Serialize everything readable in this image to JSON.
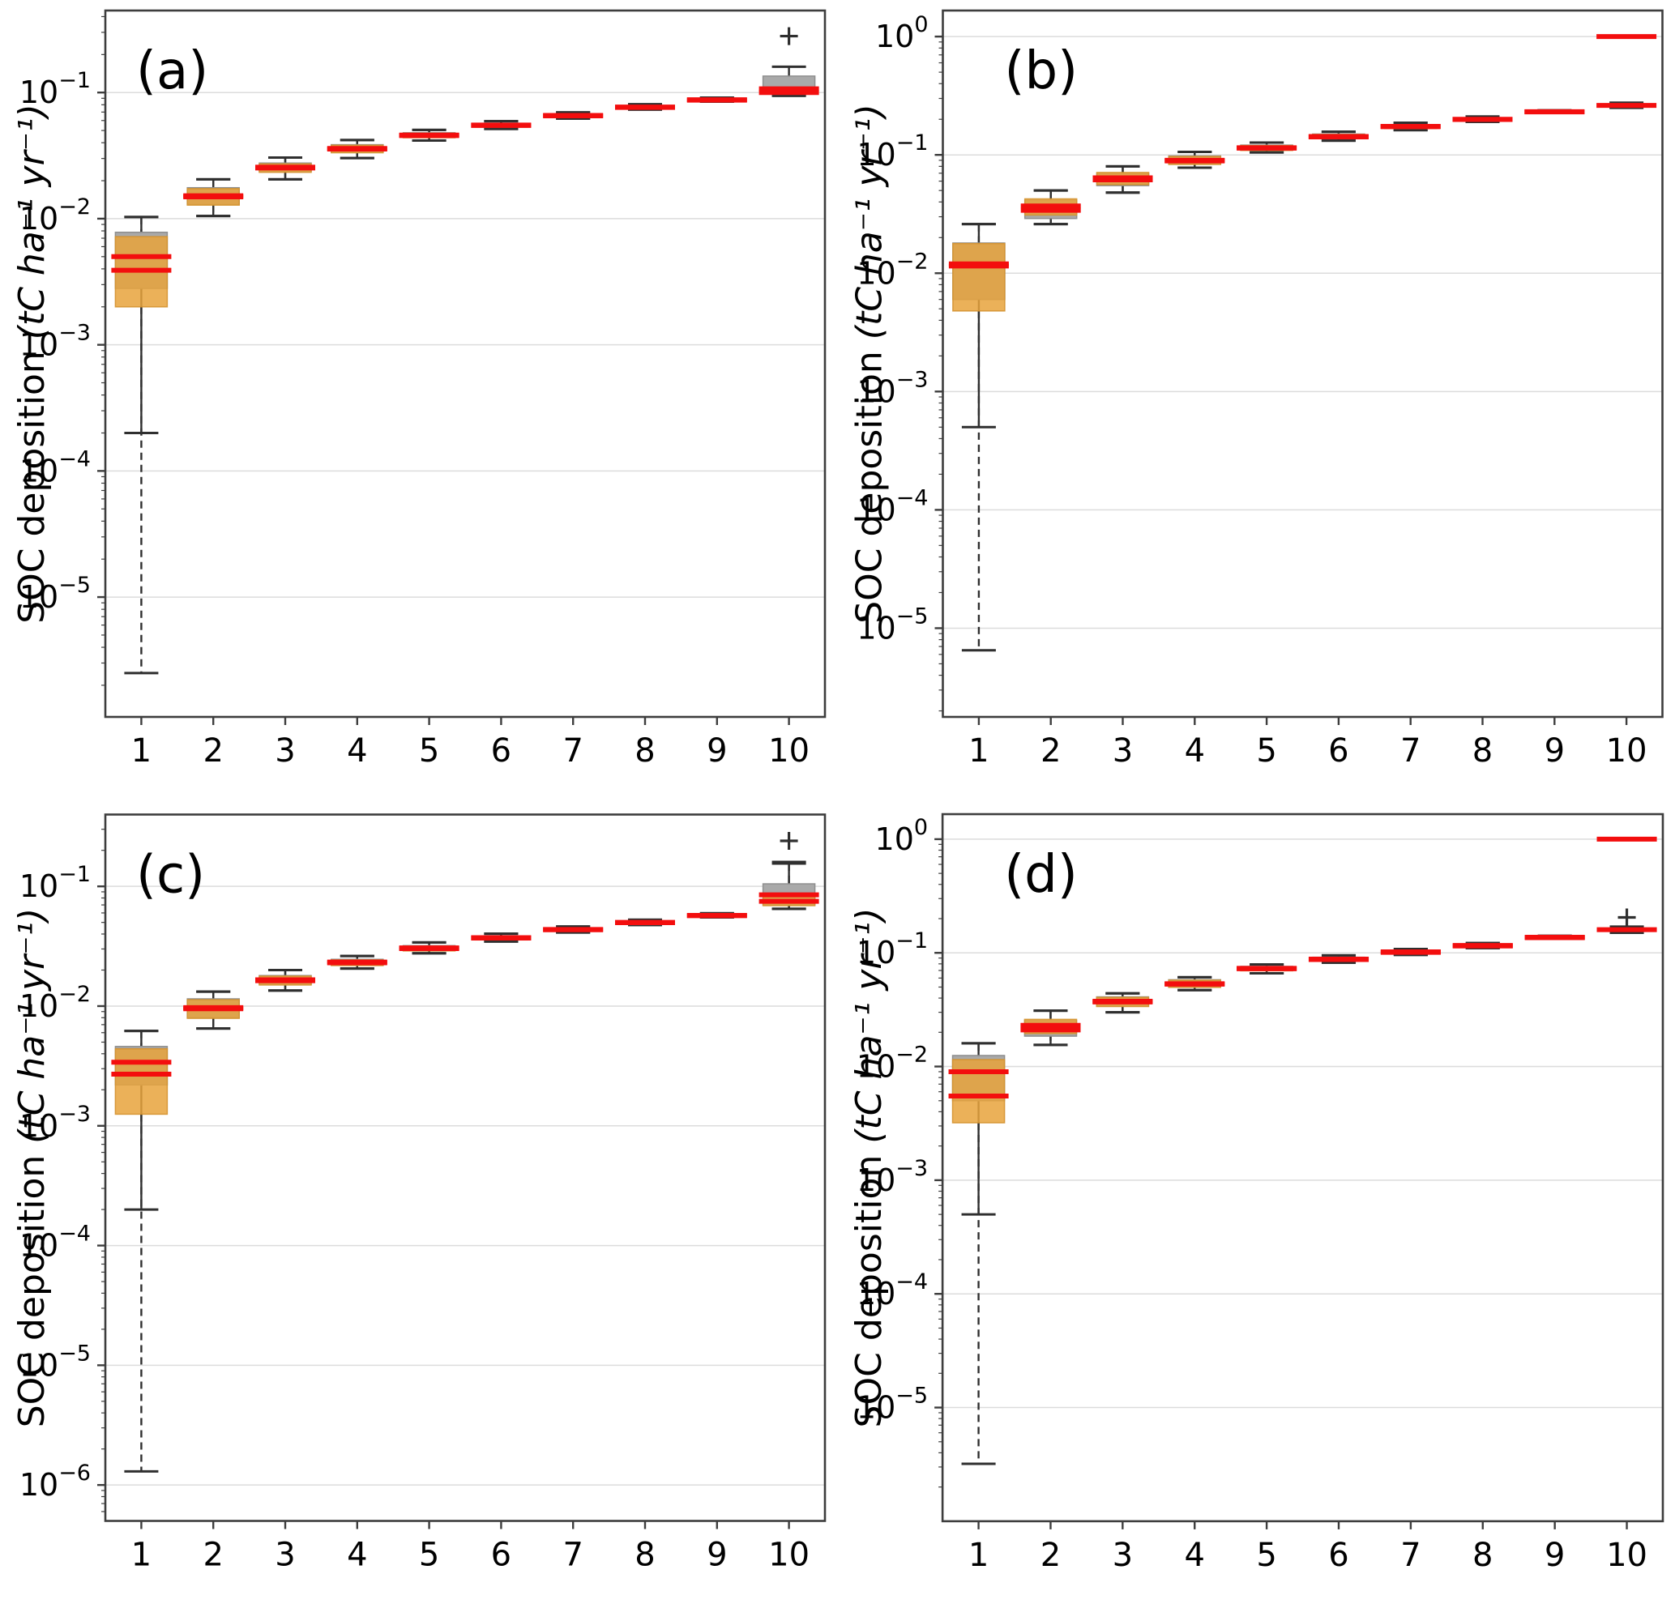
{
  "figure": {
    "ylabel_main": "SOC deposition ",
    "ylabel_unit": "(tC ha⁻¹ yr⁻¹)",
    "colors": {
      "background": "#ffffff",
      "spine": "#3d3d3d",
      "grid": "#dcdcdc",
      "whisker": "#2f2f2f",
      "gray_box_fill": "#a9a9a9",
      "gray_box_edge": "#8e8e8e",
      "orange_box_fill": "#e8a33c",
      "orange_box_edge": "#d4922f",
      "median_red": "#f30e0e",
      "text": "#000000"
    },
    "box_stats_order": "whisker_low, q1, median, q3, whisker_high"
  },
  "chart_data": [
    {
      "type": "boxplot",
      "panel_label": "(a)",
      "panel_label_x_offset": 38,
      "x_categories": [
        "1",
        "2",
        "3",
        "4",
        "5",
        "6",
        "7",
        "8",
        "9",
        "10"
      ],
      "y_tick_exponents": [
        -1,
        -2,
        -3,
        -4,
        -5
      ],
      "y_log_range": [
        -5.95,
        -0.35
      ],
      "grid": true,
      "series_names": [
        "gray",
        "orange"
      ],
      "categories": [
        {
          "x": "1",
          "gray": [
            0.0002,
            0.0028,
            0.005,
            0.0078,
            0.0103
          ],
          "orange": [
            2.5e-06,
            0.002,
            0.0039,
            0.0072,
            0.0103
          ],
          "outliers": []
        },
        {
          "x": "2",
          "gray": [
            0.0105,
            0.013,
            0.0152,
            0.0176,
            0.0205
          ],
          "orange": [
            0.0105,
            0.0128,
            0.0149,
            0.0173,
            0.0205
          ],
          "outliers": []
        },
        {
          "x": "3",
          "gray": [
            0.0205,
            0.0236,
            0.0256,
            0.0276,
            0.0305
          ],
          "orange": [
            0.0205,
            0.0233,
            0.0252,
            0.0272,
            0.0305
          ],
          "outliers": []
        },
        {
          "x": "4",
          "gray": [
            0.0302,
            0.0336,
            0.036,
            0.0386,
            0.042
          ],
          "orange": [
            0.0302,
            0.0333,
            0.0356,
            0.0382,
            0.042
          ],
          "outliers": []
        },
        {
          "x": "5",
          "gray": [
            0.0416,
            0.0442,
            0.046,
            0.048,
            0.0505
          ],
          "orange": [
            0.0416,
            0.0438,
            0.0456,
            0.0476,
            0.0505
          ],
          "outliers": []
        },
        {
          "x": "6",
          "gray": [
            0.0515,
            0.0536,
            0.0552,
            0.057,
            0.0592
          ],
          "orange": [
            0.0515,
            0.0532,
            0.0548,
            0.0566,
            0.0592
          ],
          "outliers": []
        },
        {
          "x": "7",
          "gray": [
            0.0622,
            0.0642,
            0.0658,
            0.0676,
            0.0696
          ],
          "orange": [
            0.0622,
            0.0638,
            0.0653,
            0.0671,
            0.0696
          ],
          "outliers": []
        },
        {
          "x": "8",
          "gray": [
            0.0732,
            0.0752,
            0.0768,
            0.0786,
            0.0806
          ],
          "orange": [
            0.0732,
            0.0747,
            0.0762,
            0.078,
            0.0806
          ],
          "outliers": []
        },
        {
          "x": "9",
          "gray": [
            0.0846,
            0.0862,
            0.0876,
            0.0894,
            0.0912
          ],
          "orange": [
            0.0846,
            0.0857,
            0.087,
            0.0888,
            0.0912
          ],
          "outliers": []
        },
        {
          "x": "10",
          "gray": [
            0.096,
            0.1,
            0.107,
            0.135,
            0.16
          ],
          "orange": [
            0.094,
            0.097,
            0.1,
            0.11,
            0.12
          ],
          "outliers": [
            0.28
          ]
        }
      ]
    },
    {
      "type": "boxplot",
      "panel_label": "(b)",
      "panel_label_x_offset": 76,
      "x_categories": [
        "1",
        "2",
        "3",
        "4",
        "5",
        "6",
        "7",
        "8",
        "9",
        "10"
      ],
      "y_tick_exponents": [
        0,
        -1,
        -2,
        -3,
        -4,
        -5
      ],
      "y_log_range": [
        -5.75,
        0.22
      ],
      "grid": true,
      "series_names": [
        "gray",
        "orange"
      ],
      "categories": [
        {
          "x": "1",
          "gray": [
            0.0005,
            0.006,
            0.012,
            0.018,
            0.026
          ],
          "orange": [
            6.5e-06,
            0.0048,
            0.0115,
            0.0178,
            0.026
          ],
          "outliers": []
        },
        {
          "x": "2",
          "gray": [
            0.026,
            0.029,
            0.034,
            0.0415,
            0.05
          ],
          "orange": [
            0.026,
            0.031,
            0.037,
            0.0425,
            0.05
          ],
          "outliers": []
        },
        {
          "x": "3",
          "gray": [
            0.048,
            0.055,
            0.0615,
            0.07,
            0.08
          ],
          "orange": [
            0.048,
            0.056,
            0.064,
            0.071,
            0.08
          ],
          "outliers": []
        },
        {
          "x": "4",
          "gray": [
            0.078,
            0.084,
            0.09,
            0.098,
            0.106
          ],
          "orange": [
            0.078,
            0.083,
            0.089,
            0.097,
            0.106
          ],
          "outliers": []
        },
        {
          "x": "5",
          "gray": [
            0.105,
            0.11,
            0.115,
            0.121,
            0.127
          ],
          "orange": [
            0.105,
            0.109,
            0.114,
            0.12,
            0.127
          ],
          "outliers": []
        },
        {
          "x": "6",
          "gray": [
            0.132,
            0.138,
            0.143,
            0.15,
            0.157
          ],
          "orange": [
            0.132,
            0.137,
            0.142,
            0.149,
            0.157
          ],
          "outliers": []
        },
        {
          "x": "7",
          "gray": [
            0.162,
            0.168,
            0.174,
            0.18,
            0.187
          ],
          "orange": [
            0.162,
            0.167,
            0.173,
            0.179,
            0.187
          ],
          "outliers": []
        },
        {
          "x": "8",
          "gray": [
            0.19,
            0.195,
            0.2,
            0.206,
            0.211
          ],
          "orange": [
            0.19,
            0.194,
            0.199,
            0.205,
            0.211
          ],
          "outliers": []
        },
        {
          "x": "9",
          "gray": [
            0.226,
            0.229,
            0.232,
            0.235,
            0.238
          ],
          "orange": [
            0.226,
            0.228,
            0.231,
            0.234,
            0.238
          ],
          "outliers": []
        },
        {
          "x": "10",
          "gray": [
            1.0,
            1.0,
            1.0,
            1.0,
            1.0
          ],
          "orange": [
            0.25,
            0.256,
            0.262,
            0.27,
            0.276
          ],
          "outliers": []
        }
      ]
    },
    {
      "type": "boxplot",
      "panel_label": "(c)",
      "panel_label_x_offset": 38,
      "x_categories": [
        "1",
        "2",
        "3",
        "4",
        "5",
        "6",
        "7",
        "8",
        "9",
        "10"
      ],
      "y_tick_exponents": [
        -1,
        -2,
        -3,
        -4,
        -5,
        -6
      ],
      "y_log_range": [
        -6.3,
        -0.4
      ],
      "grid": true,
      "series_names": [
        "gray",
        "orange"
      ],
      "categories": [
        {
          "x": "1",
          "gray": [
            0.0002,
            0.0022,
            0.0034,
            0.0046,
            0.0062
          ],
          "orange": [
            1.3e-06,
            0.00125,
            0.0027,
            0.0044,
            0.0062
          ],
          "outliers": []
        },
        {
          "x": "2",
          "gray": [
            0.0065,
            0.008,
            0.0097,
            0.0115,
            0.0132
          ],
          "orange": [
            0.0065,
            0.0079,
            0.0095,
            0.0113,
            0.0132
          ],
          "outliers": []
        },
        {
          "x": "3",
          "gray": [
            0.0135,
            0.0152,
            0.0166,
            0.018,
            0.02
          ],
          "orange": [
            0.0135,
            0.015,
            0.0163,
            0.0178,
            0.02
          ],
          "outliers": []
        },
        {
          "x": "4",
          "gray": [
            0.0206,
            0.022,
            0.0233,
            0.0246,
            0.0262
          ],
          "orange": [
            0.0206,
            0.0218,
            0.023,
            0.0243,
            0.0262
          ],
          "outliers": []
        },
        {
          "x": "5",
          "gray": [
            0.0276,
            0.0292,
            0.0306,
            0.032,
            0.034
          ],
          "orange": [
            0.0276,
            0.0289,
            0.0302,
            0.0317,
            0.034
          ],
          "outliers": []
        },
        {
          "x": "6",
          "gray": [
            0.0346,
            0.036,
            0.0373,
            0.0386,
            0.0402
          ],
          "orange": [
            0.0346,
            0.0357,
            0.037,
            0.0383,
            0.0402
          ],
          "outliers": []
        },
        {
          "x": "7",
          "gray": [
            0.0412,
            0.0426,
            0.0437,
            0.045,
            0.0462
          ],
          "orange": [
            0.0412,
            0.0423,
            0.0434,
            0.0447,
            0.0462
          ],
          "outliers": []
        },
        {
          "x": "8",
          "gray": [
            0.0476,
            0.049,
            0.05,
            0.0512,
            0.0526
          ],
          "orange": [
            0.0476,
            0.0487,
            0.0497,
            0.0509,
            0.0526
          ],
          "outliers": []
        },
        {
          "x": "9",
          "gray": [
            0.055,
            0.0562,
            0.0572,
            0.0584,
            0.0596
          ],
          "orange": [
            0.055,
            0.0559,
            0.0569,
            0.0581,
            0.0596
          ],
          "outliers": []
        },
        {
          "x": "10",
          "gray": [
            0.065,
            0.07,
            0.085,
            0.105,
            0.16
          ],
          "orange": [
            0.065,
            0.069,
            0.075,
            0.082,
            0.155
          ],
          "outliers": [
            0.24
          ]
        }
      ]
    },
    {
      "type": "boxplot",
      "panel_label": "(d)",
      "panel_label_x_offset": 76,
      "x_categories": [
        "1",
        "2",
        "3",
        "4",
        "5",
        "6",
        "7",
        "8",
        "9",
        "10"
      ],
      "y_tick_exponents": [
        0,
        -1,
        -2,
        -3,
        -4,
        -5
      ],
      "y_log_range": [
        -6.0,
        0.22
      ],
      "grid": true,
      "series_names": [
        "gray",
        "orange"
      ],
      "categories": [
        {
          "x": "1",
          "gray": [
            0.0005,
            0.005,
            0.009,
            0.0125,
            0.016
          ],
          "orange": [
            3.2e-06,
            0.0032,
            0.0055,
            0.0115,
            0.016
          ],
          "outliers": []
        },
        {
          "x": "2",
          "gray": [
            0.0155,
            0.0185,
            0.021,
            0.0255,
            0.031
          ],
          "orange": [
            0.0155,
            0.0195,
            0.023,
            0.026,
            0.031
          ],
          "outliers": []
        },
        {
          "x": "3",
          "gray": [
            0.03,
            0.034,
            0.0375,
            0.041,
            0.044
          ],
          "orange": [
            0.03,
            0.0337,
            0.037,
            0.0406,
            0.044
          ],
          "outliers": []
        },
        {
          "x": "4",
          "gray": [
            0.047,
            0.05,
            0.0535,
            0.058,
            0.061
          ],
          "orange": [
            0.047,
            0.0497,
            0.053,
            0.0575,
            0.061
          ],
          "outliers": []
        },
        {
          "x": "5",
          "gray": [
            0.066,
            0.07,
            0.073,
            0.076,
            0.079
          ],
          "orange": [
            0.066,
            0.0695,
            0.0725,
            0.0755,
            0.079
          ],
          "outliers": []
        },
        {
          "x": "6",
          "gray": [
            0.082,
            0.085,
            0.088,
            0.0915,
            0.095
          ],
          "orange": [
            0.082,
            0.0845,
            0.0874,
            0.091,
            0.095
          ],
          "outliers": []
        },
        {
          "x": "7",
          "gray": [
            0.096,
            0.099,
            0.102,
            0.105,
            0.108
          ],
          "orange": [
            0.096,
            0.0984,
            0.101,
            0.104,
            0.108
          ],
          "outliers": []
        },
        {
          "x": "8",
          "gray": [
            0.11,
            0.113,
            0.116,
            0.119,
            0.122
          ],
          "orange": [
            0.11,
            0.112,
            0.115,
            0.118,
            0.122
          ],
          "outliers": []
        },
        {
          "x": "9",
          "gray": [
            0.133,
            0.135,
            0.137,
            0.139,
            0.141
          ],
          "orange": [
            0.133,
            0.134,
            0.136,
            0.138,
            0.141
          ],
          "outliers": []
        },
        {
          "x": "10",
          "gray": [
            1.0,
            1.0,
            1.0,
            1.0,
            1.0
          ],
          "orange": [
            0.15,
            0.155,
            0.16,
            0.165,
            0.17
          ],
          "outliers": [
            0.205
          ]
        }
      ]
    }
  ]
}
